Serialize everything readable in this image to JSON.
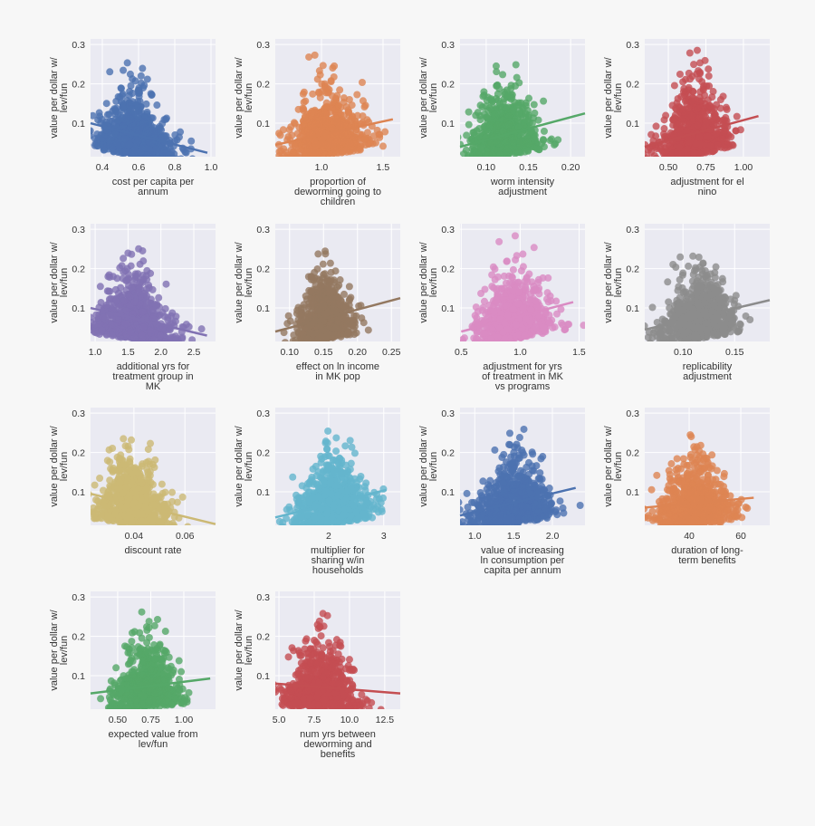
{
  "chart_data": [
    {
      "type": "scatter",
      "xlabel": [
        "cost per capita per",
        "annum"
      ],
      "ylabel": [
        "value per dollar w/",
        "lev/fun"
      ],
      "xlim": [
        0.335,
        1.025
      ],
      "ylim": [
        0.015,
        0.314
      ],
      "xticks": [
        0.4,
        0.6,
        0.8,
        1.0
      ],
      "xtick_labels": [
        "0.4",
        "0.6",
        "0.8",
        "1.0"
      ],
      "yticks": [
        0.1,
        0.2,
        0.3
      ],
      "ytick_labels": [
        "0.1",
        "0.2",
        "0.3"
      ],
      "color": "#4C72B0",
      "x_center": 0.58,
      "x_spread": 0.1,
      "regression": [
        [
          0.335,
          0.1
        ],
        [
          0.98,
          0.025
        ]
      ]
    },
    {
      "type": "scatter",
      "xlabel": [
        "proportion of",
        "deworming going to",
        "children"
      ],
      "ylabel": [
        "value per dollar w/",
        "lev/fun"
      ],
      "xlim": [
        0.625,
        1.64
      ],
      "ylim": [
        0.015,
        0.314
      ],
      "xticks": [
        1.0,
        1.5
      ],
      "xtick_labels": [
        "1.0",
        "1.5"
      ],
      "yticks": [
        0.1,
        0.2,
        0.3
      ],
      "ytick_labels": [
        "0.1",
        "0.2",
        "0.3"
      ],
      "color": "#DD8452",
      "x_center": 1.05,
      "x_spread": 0.17,
      "regression": [
        [
          0.625,
          0.045
        ],
        [
          1.58,
          0.11
        ]
      ]
    },
    {
      "type": "scatter",
      "xlabel": [
        "worm intensity",
        "adjustment"
      ],
      "ylabel": [
        "value per dollar w/",
        "lev/fun"
      ],
      "xlim": [
        0.069,
        0.217
      ],
      "ylim": [
        0.015,
        0.314
      ],
      "xticks": [
        0.1,
        0.15,
        0.2
      ],
      "xtick_labels": [
        "0.10",
        "0.15",
        "0.20"
      ],
      "yticks": [
        0.1,
        0.2,
        0.3
      ],
      "ytick_labels": [
        "0.1",
        "0.2",
        "0.3"
      ],
      "color": "#55A868",
      "x_center": 0.12,
      "x_spread": 0.02,
      "regression": [
        [
          0.069,
          0.04
        ],
        [
          0.217,
          0.125
        ]
      ]
    },
    {
      "type": "scatter",
      "xlabel": [
        "adjustment for el",
        "nino"
      ],
      "ylabel": [
        "value per dollar w/",
        "lev/fun"
      ],
      "xlim": [
        0.343,
        1.175
      ],
      "ylim": [
        0.015,
        0.314
      ],
      "xticks": [
        0.5,
        0.75,
        1.0
      ],
      "xtick_labels": [
        "0.50",
        "0.75",
        "1.00"
      ],
      "yticks": [
        0.1,
        0.2,
        0.3
      ],
      "ytick_labels": [
        "0.1",
        "0.2",
        "0.3"
      ],
      "color": "#C44E52",
      "x_center": 0.67,
      "x_spread": 0.11,
      "regression": [
        [
          0.343,
          0.04
        ],
        [
          1.1,
          0.118
        ]
      ]
    },
    {
      "type": "scatter",
      "xlabel": [
        "additional yrs for",
        "treatment group in",
        "MK"
      ],
      "ylabel": [
        "value per dollar w/",
        "lev/fun"
      ],
      "xlim": [
        0.93,
        2.83
      ],
      "ylim": [
        0.015,
        0.314
      ],
      "xticks": [
        1.0,
        1.5,
        2.0,
        2.5
      ],
      "xtick_labels": [
        "1.0",
        "1.5",
        "2.0",
        "2.5"
      ],
      "yticks": [
        0.1,
        0.2,
        0.3
      ],
      "ytick_labels": [
        "0.1",
        "0.2",
        "0.3"
      ],
      "color": "#8172B3",
      "x_center": 1.6,
      "x_spread": 0.3,
      "regression": [
        [
          0.93,
          0.1
        ],
        [
          2.7,
          0.03
        ]
      ]
    },
    {
      "type": "scatter",
      "xlabel": [
        "effect on ln income",
        "in MK pop"
      ],
      "ylabel": [
        "value per dollar w/",
        "lev/fun"
      ],
      "xlim": [
        0.079,
        0.263
      ],
      "ylim": [
        0.015,
        0.314
      ],
      "xticks": [
        0.1,
        0.15,
        0.2,
        0.25
      ],
      "xtick_labels": [
        "0.10",
        "0.15",
        "0.20",
        "0.25"
      ],
      "yticks": [
        0.1,
        0.2,
        0.3
      ],
      "ytick_labels": [
        "0.1",
        "0.2",
        "0.3"
      ],
      "color": "#937860",
      "x_center": 0.15,
      "x_spread": 0.02,
      "regression": [
        [
          0.079,
          0.04
        ],
        [
          0.263,
          0.125
        ]
      ]
    },
    {
      "type": "scatter",
      "xlabel": [
        "adjustment for yrs",
        "of treatment in MK",
        "vs programs"
      ],
      "ylabel": [
        "value per dollar w/",
        "lev/fun"
      ],
      "xlim": [
        0.49,
        1.55
      ],
      "ylim": [
        0.015,
        0.314
      ],
      "xticks": [
        0.5,
        1.0,
        1.5
      ],
      "xtick_labels": [
        "0.5",
        "1.0",
        "1.5"
      ],
      "yticks": [
        0.1,
        0.2,
        0.3
      ],
      "ytick_labels": [
        "0.1",
        "0.2",
        "0.3"
      ],
      "color": "#DA8BC3",
      "x_center": 0.95,
      "x_spread": 0.17,
      "regression": [
        [
          0.5,
          0.04
        ],
        [
          1.45,
          0.115
        ]
      ]
    },
    {
      "type": "scatter",
      "xlabel": [
        "replicability",
        "adjustment"
      ],
      "ylabel": [
        "value per dollar w/",
        "lev/fun"
      ],
      "xlim": [
        0.063,
        0.184
      ],
      "ylim": [
        0.015,
        0.314
      ],
      "xticks": [
        0.1,
        0.15
      ],
      "xtick_labels": [
        "0.10",
        "0.15"
      ],
      "yticks": [
        0.1,
        0.2,
        0.3
      ],
      "ytick_labels": [
        "0.1",
        "0.2",
        "0.3"
      ],
      "color": "#8C8C8C",
      "x_center": 0.115,
      "x_spread": 0.018,
      "regression": [
        [
          0.063,
          0.045
        ],
        [
          0.184,
          0.12
        ]
      ]
    },
    {
      "type": "scatter",
      "xlabel": [
        "discount rate"
      ],
      "ylabel": [
        "value per dollar w/",
        "lev/fun"
      ],
      "xlim": [
        0.023,
        0.072
      ],
      "ylim": [
        0.015,
        0.314
      ],
      "xticks": [
        0.04,
        0.06
      ],
      "xtick_labels": [
        "0.04",
        "0.06"
      ],
      "yticks": [
        0.1,
        0.2,
        0.3
      ],
      "ytick_labels": [
        "0.1",
        "0.2",
        "0.3"
      ],
      "color": "#CCB974",
      "x_center": 0.04,
      "x_spread": 0.007,
      "regression": [
        [
          0.023,
          0.095
        ],
        [
          0.072,
          0.018
        ]
      ]
    },
    {
      "type": "scatter",
      "xlabel": [
        "multiplier for",
        "sharing w/in",
        "households"
      ],
      "ylabel": [
        "value per dollar w/",
        "lev/fun"
      ],
      "xlim": [
        1.03,
        3.3
      ],
      "ylim": [
        0.015,
        0.314
      ],
      "xticks": [
        2,
        3
      ],
      "xtick_labels": [
        "2",
        "3"
      ],
      "yticks": [
        0.1,
        0.2,
        0.3
      ],
      "ytick_labels": [
        "0.1",
        "0.2",
        "0.3"
      ],
      "color": "#64B5CD",
      "x_center": 2.1,
      "x_spread": 0.35,
      "regression": [
        [
          1.03,
          0.035
        ],
        [
          3.05,
          0.105
        ]
      ]
    },
    {
      "type": "scatter",
      "xlabel": [
        "value of increasing",
        "ln consumption per",
        "capita per annum"
      ],
      "ylabel": [
        "value per dollar w/",
        "lev/fun"
      ],
      "xlim": [
        0.81,
        2.42
      ],
      "ylim": [
        0.015,
        0.314
      ],
      "xticks": [
        1.0,
        1.5,
        2.0
      ],
      "xtick_labels": [
        "1.0",
        "1.5",
        "2.0"
      ],
      "yticks": [
        0.1,
        0.2,
        0.3
      ],
      "ytick_labels": [
        "0.1",
        "0.2",
        "0.3"
      ],
      "color": "#4C72B0",
      "x_center": 1.5,
      "x_spread": 0.25,
      "regression": [
        [
          0.81,
          0.04
        ],
        [
          2.3,
          0.11
        ]
      ]
    },
    {
      "type": "scatter",
      "xlabel": [
        "duration of long-",
        "term benefits"
      ],
      "ylabel": [
        "value per dollar w/",
        "lev/fun"
      ],
      "xlim": [
        22.8,
        71.2
      ],
      "ylim": [
        0.015,
        0.314
      ],
      "xticks": [
        40,
        60
      ],
      "xtick_labels": [
        "40",
        "60"
      ],
      "yticks": [
        0.1,
        0.2,
        0.3
      ],
      "ytick_labels": [
        "0.1",
        "0.2",
        "0.3"
      ],
      "color": "#DD8452",
      "x_center": 42,
      "x_spread": 7,
      "regression": [
        [
          22.8,
          0.06
        ],
        [
          65,
          0.085
        ]
      ]
    },
    {
      "type": "scatter",
      "xlabel": [
        "expected value from",
        "lev/fun"
      ],
      "ylabel": [
        "value per dollar w/",
        "lev/fun"
      ],
      "xlim": [
        0.295,
        1.24
      ],
      "ylim": [
        0.015,
        0.314
      ],
      "xticks": [
        0.5,
        0.75,
        1.0
      ],
      "xtick_labels": [
        "0.50",
        "0.75",
        "1.00"
      ],
      "yticks": [
        0.1,
        0.2,
        0.3
      ],
      "ytick_labels": [
        "0.1",
        "0.2",
        "0.3"
      ],
      "color": "#55A868",
      "x_center": 0.72,
      "x_spread": 0.12,
      "regression": [
        [
          0.295,
          0.055
        ],
        [
          1.2,
          0.093
        ]
      ]
    },
    {
      "type": "scatter",
      "xlabel": [
        "num yrs between",
        "deworming and",
        "benefits"
      ],
      "ylabel": [
        "value per dollar w/",
        "lev/fun"
      ],
      "xlim": [
        4.74,
        13.6
      ],
      "ylim": [
        0.015,
        0.314
      ],
      "xticks": [
        5.0,
        7.5,
        10.0,
        12.5
      ],
      "xtick_labels": [
        "5.0",
        "7.5",
        "10.0",
        "12.5"
      ],
      "yticks": [
        0.1,
        0.2,
        0.3
      ],
      "ytick_labels": [
        "0.1",
        "0.2",
        "0.3"
      ],
      "color": "#C44E52",
      "x_center": 8,
      "x_spread": 1.3,
      "regression": [
        [
          4.74,
          0.08
        ],
        [
          13.6,
          0.055
        ]
      ]
    }
  ]
}
